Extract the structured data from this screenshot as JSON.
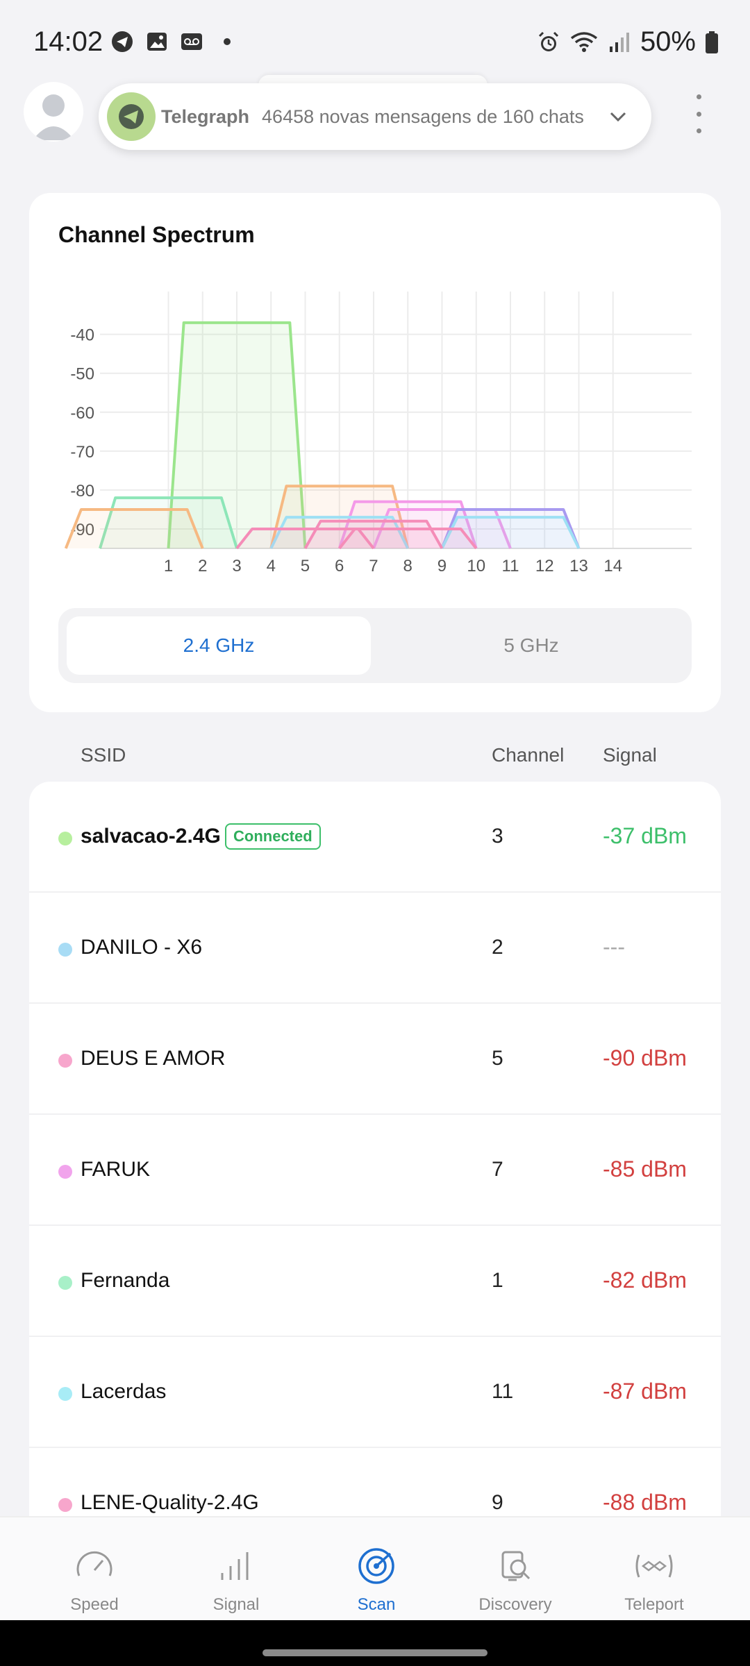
{
  "status_bar": {
    "time": "14:02",
    "battery": "50%"
  },
  "notification": {
    "app": "Telegraph",
    "text": "46458 novas mensagens de 160 chats"
  },
  "spectrum": {
    "title": "Channel Spectrum",
    "bands": {
      "b24": "2.4 GHz",
      "b5": "5 GHz",
      "selected": "2.4 GHz"
    },
    "chart_data": {
      "type": "area",
      "x_ticks": [
        "1",
        "2",
        "3",
        "4",
        "5",
        "6",
        "7",
        "8",
        "9",
        "10",
        "11",
        "12",
        "13",
        "14"
      ],
      "y_ticks": [
        "-40",
        "-50",
        "-60",
        "-70",
        "-80",
        "-90"
      ],
      "xlim": [
        -1,
        16.3
      ],
      "ylim": [
        -95,
        -29
      ],
      "grid": true,
      "series": [
        {
          "center": 3,
          "level": -37,
          "color": "#9be58c",
          "fill": "rgba(155,229,140,0.14)"
        },
        {
          "center": 1,
          "level": -82,
          "color": "#8de6b8",
          "fill": "rgba(141,230,184,0.10)"
        },
        {
          "center": 0,
          "level": -85,
          "color": "#f6b982",
          "fill": "rgba(246,185,130,0.10)"
        },
        {
          "center": 6,
          "level": -79,
          "color": "#f6b982",
          "fill": "rgba(246,185,130,0.12)"
        },
        {
          "center": 8,
          "level": -83,
          "color": "#f49ae8",
          "fill": "rgba(244,154,232,0.12)"
        },
        {
          "center": 9,
          "level": -85,
          "color": "#f49ae8",
          "fill": "rgba(244,154,232,0.08)"
        },
        {
          "center": 11,
          "level": -85,
          "color": "#a89af0",
          "fill": "rgba(168,154,240,0.10)"
        },
        {
          "center": 11,
          "level": -87,
          "color": "#9ee0f4",
          "fill": "rgba(158,224,244,0.10)"
        },
        {
          "center": 6,
          "level": -87,
          "color": "#9ee0f4",
          "fill": "rgba(158,224,244,0.10)"
        },
        {
          "center": 7,
          "level": -88,
          "color": "#f58db8",
          "fill": "rgba(245,141,184,0.12)"
        },
        {
          "center": 5,
          "level": -90,
          "color": "#f58db8",
          "fill": "rgba(245,141,184,0.10)"
        },
        {
          "center": 8,
          "level": -90,
          "color": "#f58db8",
          "fill": "rgba(245,141,184,0.08)"
        }
      ]
    }
  },
  "list": {
    "headers": {
      "ssid": "SSID",
      "channel": "Channel",
      "signal": "Signal"
    },
    "rows": [
      {
        "ssid": "salvacao-2.4G",
        "badge": "Connected",
        "channel": "3",
        "signal": "-37 dBm",
        "dot": "#b7ef9e",
        "sig_color": "#3cbf6a"
      },
      {
        "ssid": "DANILO - X6",
        "channel": "2",
        "signal": "---",
        "dot": "#a8dcf5",
        "sig_color": "#aaaaaa"
      },
      {
        "ssid": "DEUS E AMOR",
        "channel": "5",
        "signal": "-90 dBm",
        "dot": "#f7a6cc",
        "sig_color": "#d2403f"
      },
      {
        "ssid": "FARUK",
        "channel": "7",
        "signal": "-85 dBm",
        "dot": "#f1a4ec",
        "sig_color": "#d2403f"
      },
      {
        "ssid": "Fernanda",
        "channel": "1",
        "signal": "-82 dBm",
        "dot": "#a8f0c8",
        "sig_color": "#d2403f"
      },
      {
        "ssid": "Lacerdas",
        "channel": "11",
        "signal": "-87 dBm",
        "dot": "#a8ecf6",
        "sig_color": "#d2403f"
      },
      {
        "ssid": "LENE-Quality-2.4G",
        "channel": "9",
        "signal": "-88 dBm",
        "dot": "#f7a6cc",
        "sig_color": "#d2403f"
      }
    ]
  },
  "nav": {
    "speed": "Speed",
    "signal": "Signal",
    "scan": "Scan",
    "discovery": "Discovery",
    "teleport": "Teleport",
    "active": "Scan"
  }
}
